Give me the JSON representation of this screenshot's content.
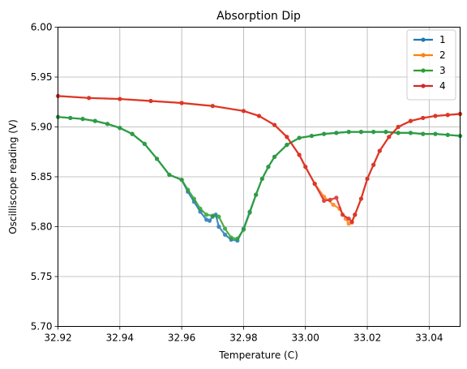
{
  "chart_data": {
    "type": "line",
    "title": "Absorption Dip",
    "xlabel": "Temperature (C)",
    "ylabel": "Oscilliscope reading (V)",
    "xlim": [
      32.92,
      33.05
    ],
    "ylim": [
      5.7,
      6.0
    ],
    "xticks": [
      "32.92",
      "32.94",
      "32.96",
      "32.98",
      "33.00",
      "33.02",
      "33.04"
    ],
    "yticks": [
      "5.70",
      "5.75",
      "5.80",
      "5.85",
      "5.90",
      "5.95",
      "6.00"
    ],
    "grid": true,
    "legend_position": "top-right",
    "colors": [
      "#1f77b4",
      "#ff7f0e",
      "#2ca02c",
      "#d62728"
    ],
    "series": [
      {
        "name": "1",
        "x": [
          32.92,
          32.924,
          32.928,
          32.932,
          32.936,
          32.94,
          32.944,
          32.948,
          32.952,
          32.956,
          32.96,
          32.962,
          32.964,
          32.966,
          32.968,
          32.969,
          32.97,
          32.971,
          32.972,
          32.974,
          32.976,
          32.978,
          32.98,
          32.982,
          32.984,
          32.986,
          32.988,
          32.99,
          32.994,
          32.998,
          33.002,
          33.006,
          33.01,
          33.014,
          33.018,
          33.022,
          33.026,
          33.03,
          33.034,
          33.038,
          33.042,
          33.046,
          33.05
        ],
        "y": [
          5.91,
          5.909,
          5.908,
          5.906,
          5.903,
          5.899,
          5.893,
          5.883,
          5.868,
          5.852,
          5.847,
          5.835,
          5.825,
          5.815,
          5.807,
          5.806,
          5.81,
          5.812,
          5.8,
          5.792,
          5.787,
          5.786,
          5.798,
          5.815,
          5.832,
          5.848,
          5.86,
          5.87,
          5.882,
          5.889,
          5.891,
          5.893,
          5.894,
          5.895,
          5.895,
          5.895,
          5.895,
          5.894,
          5.894,
          5.893,
          5.893,
          5.892,
          5.891
        ]
      },
      {
        "name": "2",
        "x": [
          32.92,
          32.93,
          32.94,
          32.95,
          32.96,
          32.97,
          32.98,
          32.985,
          32.99,
          32.994,
          32.998,
          33.0,
          33.003,
          33.006,
          33.009,
          33.011,
          33.013,
          33.014,
          33.015,
          33.016,
          33.018,
          33.02,
          33.022,
          33.024,
          33.027,
          33.03,
          33.034,
          33.038,
          33.042,
          33.046,
          33.05
        ],
        "y": [
          5.931,
          5.929,
          5.928,
          5.926,
          5.924,
          5.921,
          5.916,
          5.911,
          5.902,
          5.89,
          5.872,
          5.86,
          5.843,
          5.83,
          5.822,
          5.818,
          5.808,
          5.803,
          5.804,
          5.812,
          5.828,
          5.848,
          5.862,
          5.876,
          5.89,
          5.9,
          5.906,
          5.909,
          5.911,
          5.912,
          5.913
        ]
      },
      {
        "name": "3",
        "x": [
          32.92,
          32.924,
          32.928,
          32.932,
          32.936,
          32.94,
          32.944,
          32.948,
          32.952,
          32.956,
          32.96,
          32.962,
          32.964,
          32.966,
          32.968,
          32.97,
          32.972,
          32.974,
          32.976,
          32.978,
          32.98,
          32.982,
          32.984,
          32.986,
          32.988,
          32.99,
          32.994,
          32.998,
          33.002,
          33.006,
          33.01,
          33.014,
          33.018,
          33.022,
          33.026,
          33.03,
          33.034,
          33.038,
          33.042,
          33.046,
          33.05
        ],
        "y": [
          5.91,
          5.909,
          5.908,
          5.906,
          5.903,
          5.899,
          5.893,
          5.883,
          5.868,
          5.852,
          5.847,
          5.837,
          5.828,
          5.818,
          5.812,
          5.811,
          5.81,
          5.798,
          5.789,
          5.788,
          5.797,
          5.814,
          5.832,
          5.848,
          5.86,
          5.87,
          5.882,
          5.889,
          5.891,
          5.893,
          5.894,
          5.895,
          5.895,
          5.895,
          5.895,
          5.894,
          5.894,
          5.893,
          5.893,
          5.892,
          5.891
        ]
      },
      {
        "name": "4",
        "x": [
          32.92,
          32.93,
          32.94,
          32.95,
          32.96,
          32.97,
          32.98,
          32.985,
          32.99,
          32.994,
          32.998,
          33.0,
          33.003,
          33.006,
          33.008,
          33.01,
          33.012,
          33.014,
          33.015,
          33.016,
          33.018,
          33.02,
          33.022,
          33.024,
          33.027,
          33.03,
          33.034,
          33.038,
          33.042,
          33.046,
          33.05
        ],
        "y": [
          5.931,
          5.929,
          5.928,
          5.926,
          5.924,
          5.921,
          5.916,
          5.911,
          5.902,
          5.89,
          5.872,
          5.86,
          5.843,
          5.826,
          5.827,
          5.829,
          5.812,
          5.808,
          5.805,
          5.812,
          5.828,
          5.848,
          5.862,
          5.876,
          5.89,
          5.9,
          5.906,
          5.909,
          5.911,
          5.912,
          5.913
        ]
      }
    ]
  }
}
